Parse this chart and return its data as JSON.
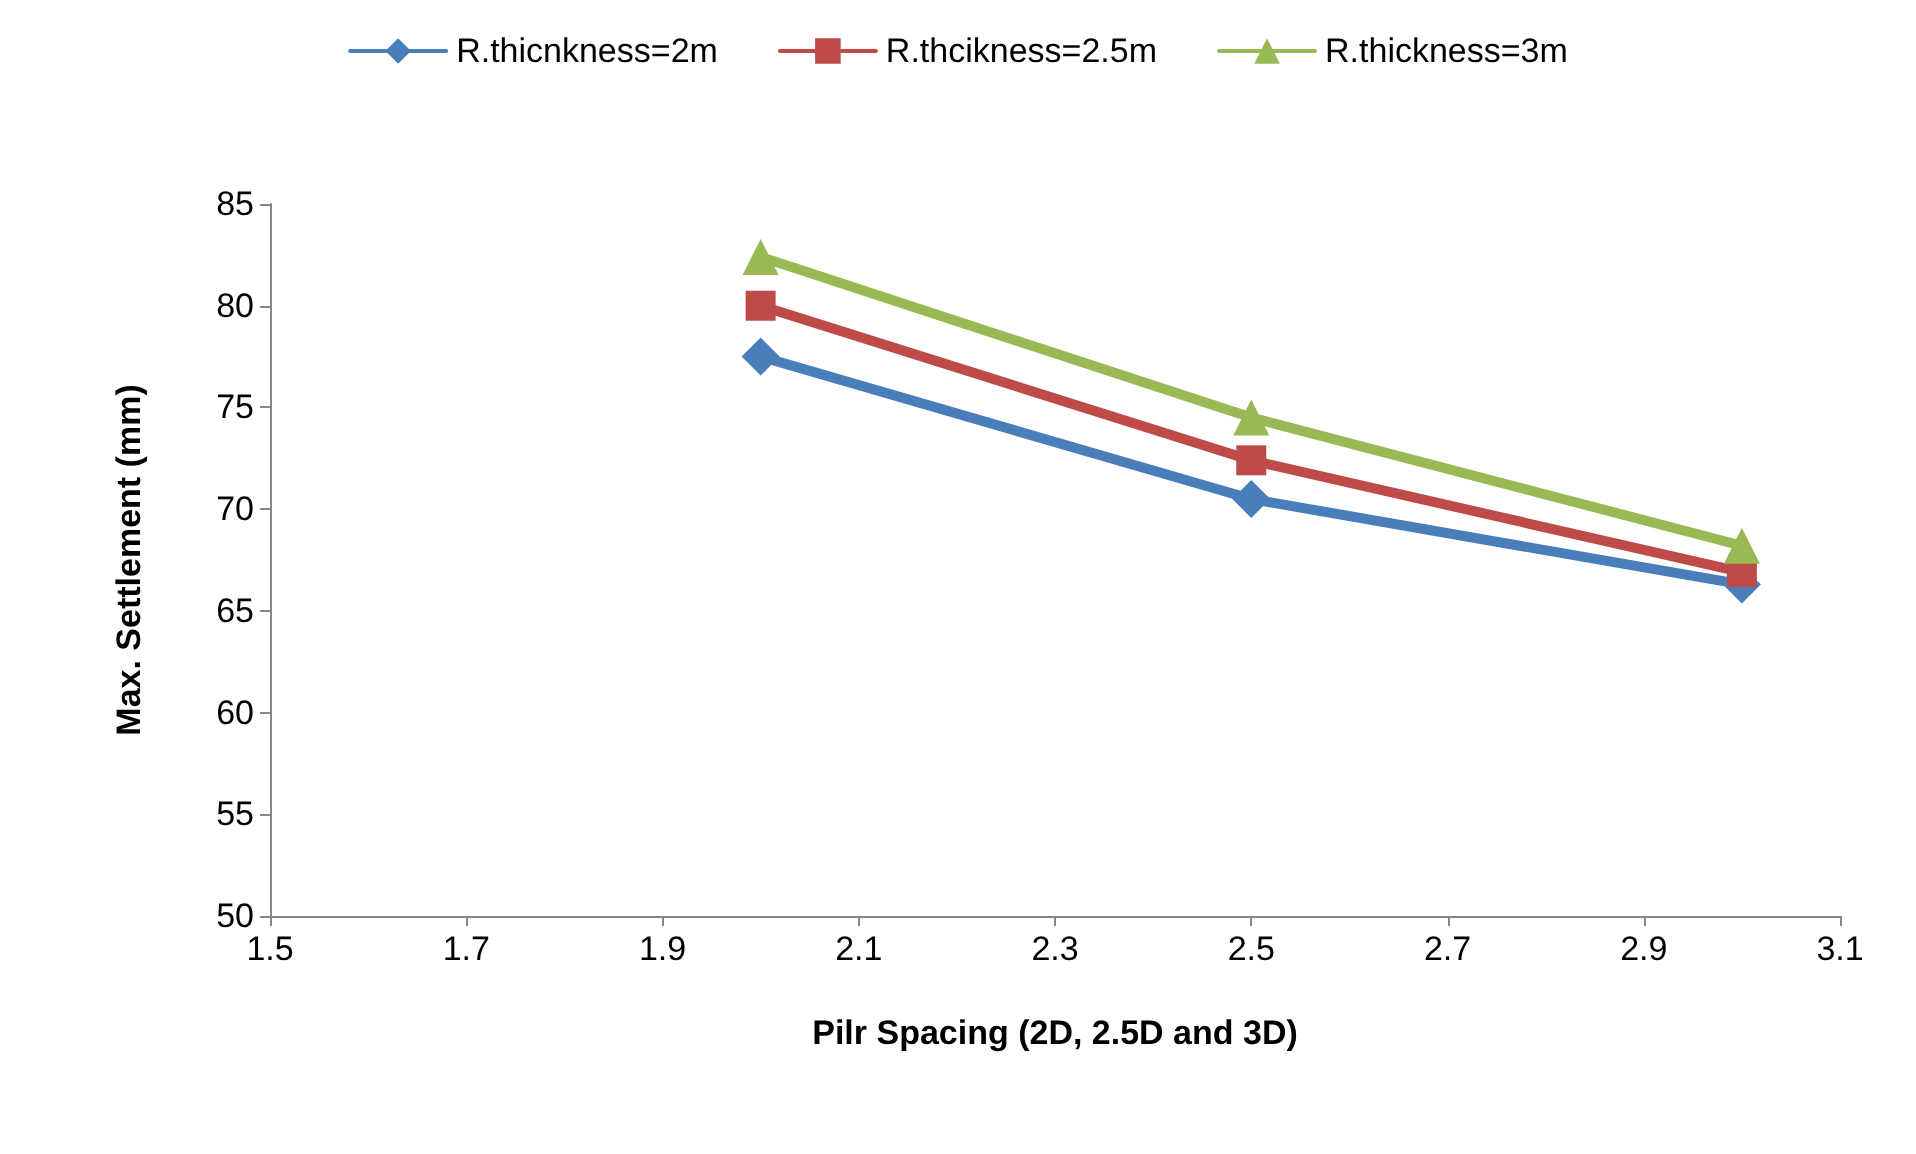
{
  "chart_data": {
    "type": "line",
    "xlabel": "Pilr Spacing (2D, 2.5D and 3D)",
    "ylabel": "Max. Settlement (mm)",
    "x": [
      2,
      2.5,
      3
    ],
    "series": [
      {
        "name": "R.thicnkness=2m",
        "color": "#4a7ebb",
        "marker": "diamond",
        "values": [
          77.5,
          70.5,
          66.3
        ]
      },
      {
        "name": "R.thcikness=2.5m",
        "color": "#be4b48",
        "marker": "square",
        "values": [
          80.0,
          72.4,
          66.9
        ]
      },
      {
        "name": "R.thickness=3m",
        "color": "#98b954",
        "marker": "triangle",
        "values": [
          82.4,
          74.5,
          68.2
        ]
      }
    ],
    "xlim": [
      1.5,
      3.1
    ],
    "xticks": [
      1.5,
      1.7,
      1.9,
      2.1,
      2.3,
      2.5,
      2.7,
      2.9,
      3.1
    ],
    "ylim": [
      50,
      85
    ],
    "yticks": [
      50,
      55,
      60,
      65,
      70,
      75,
      80,
      85
    ],
    "grid": false,
    "legend": "top",
    "line_style": "solid"
  }
}
